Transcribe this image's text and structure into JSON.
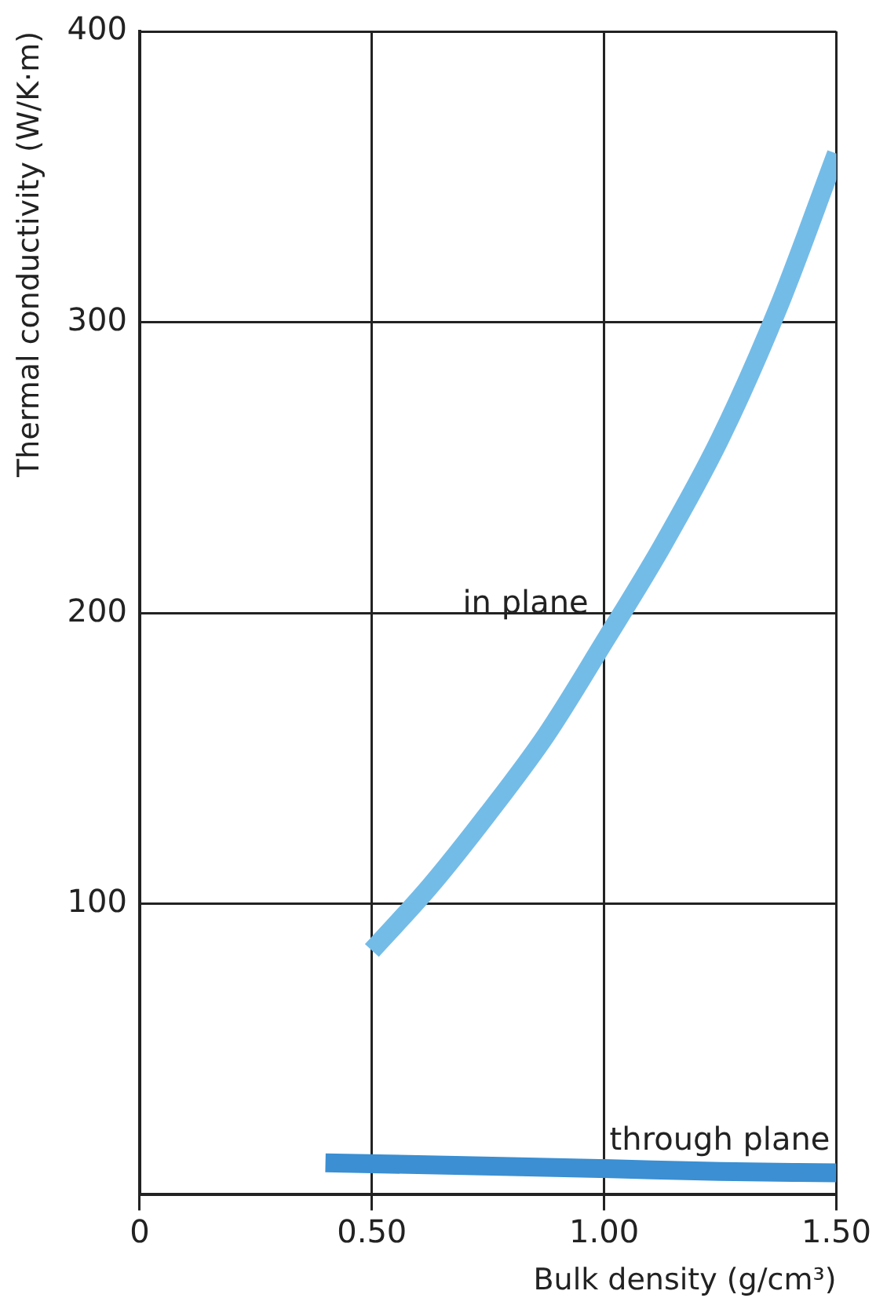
{
  "chart_data": {
    "type": "line",
    "xlabel": "Bulk density (g/cm³)",
    "ylabel": "Thermal conductivity (W/K·m)",
    "xlim": [
      0,
      1.5
    ],
    "xticks": [
      {
        "value": 0,
        "label": "0"
      },
      {
        "value": 0.5,
        "label": "0.50"
      },
      {
        "value": 1,
        "label": "1.00"
      },
      {
        "value": 1.5,
        "label": "1.50"
      }
    ],
    "ylim": [
      0,
      400
    ],
    "yticks": [
      100,
      200,
      300,
      400
    ],
    "grid": true,
    "legend": false,
    "marker": "none",
    "line_style": "solid",
    "series": [
      {
        "name": "in plane",
        "color": "#74bce8",
        "x": [
          0.5,
          0.625,
          0.75,
          0.875,
          1,
          1.125,
          1.25,
          1.375,
          1.5
        ],
        "values": [
          84,
          106,
          131,
          158,
          190,
          223,
          260,
          305,
          358
        ]
      },
      {
        "name": "through plane",
        "color": "#3b8fd2",
        "x": [
          0.4,
          0.7,
          1,
          1.25,
          1.5
        ],
        "values": [
          11,
          10,
          9,
          8,
          7.5
        ]
      }
    ]
  }
}
